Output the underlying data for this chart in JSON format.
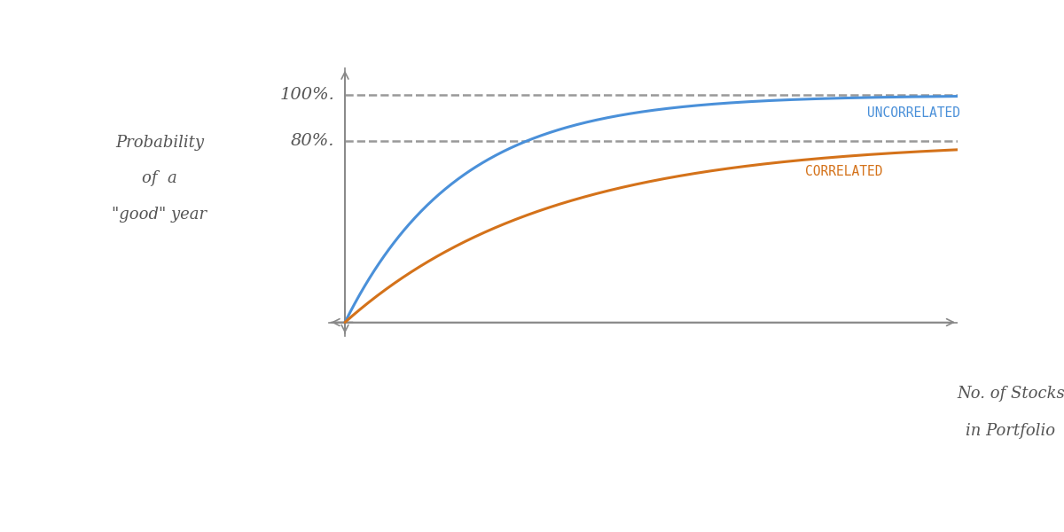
{
  "background_color": "#ffffff",
  "axis_color": "#888888",
  "uncorrelated_color": "#4a90d9",
  "correlated_color": "#d4721a",
  "dashed_color": "#999999",
  "text_color": "#555555",
  "uncorrelated_label": "UNCORRELATED",
  "correlated_label": "CORRELATED",
  "ylabel_line1": "Probability",
  "ylabel_line2": "of  a",
  "ylabel_line3": "\"good\" year",
  "xlabel_line1": "No. of Stocks",
  "xlabel_line2": "in Portfolio",
  "tick_100": "100%.",
  "tick_80": "80%.",
  "k_uncorr": 0.18,
  "k_corr": 0.1,
  "uncorrelated_asymptote": 1.0,
  "correlated_asymptote": 0.8,
  "x_max": 30,
  "y_max_display": 1.15,
  "curve_lw": 2.2,
  "axis_lw": 1.2,
  "dash_lw": 1.8
}
